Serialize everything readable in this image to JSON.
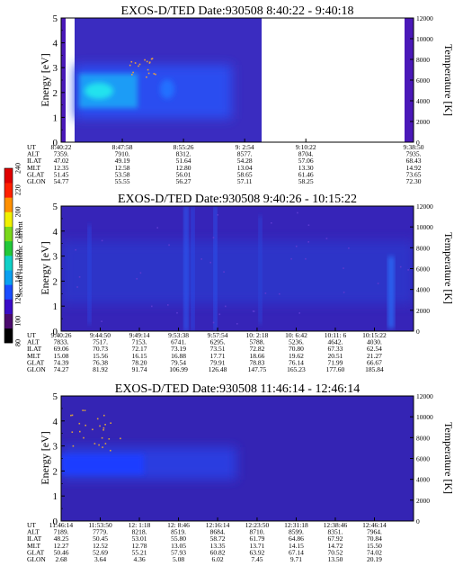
{
  "chart_data": {
    "type": "heatmap",
    "colorbar": {
      "label": "Second Harmonic Current",
      "ticks": [
        "80",
        "100",
        "120",
        "140",
        "160",
        "180",
        "200",
        "220",
        "240"
      ],
      "colors": [
        "#000000",
        "#4b0a6e",
        "#3a0cc8",
        "#1a4cff",
        "#0aa0f0",
        "#10d0c8",
        "#22c83a",
        "#7ad81a",
        "#f0f000",
        "#ff9000",
        "#ff2000",
        "#e00000"
      ]
    },
    "panels": [
      {
        "title": "EXOS-D/TED   Date:930508   8:40:22 - 9:40:18",
        "ylabel": "Energy [eV]",
        "ylabel_right": "Temperature [K]",
        "yticks": [
          "0",
          "1",
          "2",
          "3",
          "4",
          "5"
        ],
        "yticks_right": [
          "0",
          "2000",
          "4000",
          "6000",
          "8000",
          "10000",
          "12000"
        ],
        "ylim": [
          0,
          5
        ],
        "ylim_right": [
          0,
          12000
        ],
        "row_labels": [
          "UT",
          "ALT",
          "ILAT",
          "MLT",
          "GLAT",
          "GLON"
        ],
        "columns": [
          {
            "frac": 0.0,
            "values": [
              "8:40:22",
              "7359.",
              "47.02",
              "12.35",
              "51.45",
              "54.77"
            ]
          },
          {
            "frac": 0.1736,
            "values": [
              "8:47:58",
              "7910.",
              "49.19",
              "12.58",
              "53.58",
              "55.55"
            ]
          },
          {
            "frac": 0.3472,
            "values": [
              "8:55:26",
              "8312.",
              "51.64",
              "12.80",
              "56.01",
              "56.27"
            ]
          },
          {
            "frac": 0.5208,
            "values": [
              "9: 2:54",
              "8577.",
              "54.28",
              "13.04",
              "58.65",
              "57.11"
            ]
          },
          {
            "frac": 0.6944,
            "values": [
              "9:10:22",
              "8704.",
              "57.06",
              "13.30",
              "61.46",
              "58.25"
            ]
          },
          {
            "frac": 1.0,
            "values": [
              "9:38:50",
              "7935.",
              "68.43",
              "14.92",
              "73.65",
              "72.30"
            ]
          }
        ]
      },
      {
        "title": "EXOS-D/TED   Date:930508   9:40:26 - 10:15:22",
        "ylabel": "Energy [eV]",
        "ylabel_right": "Temperature [K]",
        "yticks": [
          "0",
          "1",
          "2",
          "3",
          "4",
          "5"
        ],
        "yticks_right": [
          "0",
          "2000",
          "4000",
          "6000",
          "8000",
          "10000",
          "12000"
        ],
        "ylim": [
          0,
          5
        ],
        "ylim_right": [
          0,
          12000
        ],
        "row_labels": [
          "UT",
          "ALT",
          "ILAT",
          "MLT",
          "GLAT",
          "GLON"
        ],
        "columns": [
          {
            "frac": 0.0,
            "values": [
              "9:40:26",
              "7833.",
              "69.06",
              "15.08",
              "74.39",
              "74.27"
            ]
          },
          {
            "frac": 0.111,
            "values": [
              "9:44:50",
              "7517.",
              "70.73",
              "15.56",
              "76.38",
              "81.92"
            ]
          },
          {
            "frac": 0.222,
            "values": [
              "9:49:14",
              "7153.",
              "72.17",
              "16.15",
              "78.20",
              "91.74"
            ]
          },
          {
            "frac": 0.333,
            "values": [
              "9:53:38",
              "6741.",
              "73.19",
              "16.88",
              "79.54",
              "106.99"
            ]
          },
          {
            "frac": 0.444,
            "values": [
              "9:57:54",
              "6295.",
              "73.51",
              "17.71",
              "79.91",
              "126.48"
            ]
          },
          {
            "frac": 0.556,
            "values": [
              "10: 2:18",
              "5788.",
              "72.82",
              "18.66",
              "78.83",
              "147.75"
            ]
          },
          {
            "frac": 0.667,
            "values": [
              "10: 6:42",
              "5236.",
              "70.80",
              "19.62",
              "76.14",
              "165.23"
            ]
          },
          {
            "frac": 0.778,
            "values": [
              "10:11: 6",
              "4642.",
              "67.33",
              "20.51",
              "71.99",
              "177.60"
            ]
          },
          {
            "frac": 0.889,
            "values": [
              "10:15:22",
              "4030.",
              "62.54",
              "21.27",
              "66.67",
              "185.84"
            ]
          }
        ]
      },
      {
        "title": "EXOS-D/TED   Date:930508   11:46:14 - 12:46:14",
        "ylabel": "Energy [eV]",
        "ylabel_right": "Temperature [K]",
        "yticks": [
          "0",
          "1",
          "2",
          "3",
          "4",
          "5"
        ],
        "yticks_right": [
          "0",
          "2000",
          "4000",
          "6000",
          "8000",
          "10000",
          "12000"
        ],
        "ylim": [
          0,
          5
        ],
        "ylim_right": [
          0,
          12000
        ],
        "row_labels": [
          "UT",
          "ALT",
          "ILAT",
          "MLT",
          "GLAT",
          "GLON"
        ],
        "columns": [
          {
            "frac": 0.0,
            "values": [
              "11:46:14",
              "7189.",
              "48.25",
              "12.27",
              "50.46",
              "2.68"
            ]
          },
          {
            "frac": 0.111,
            "values": [
              "11:53:50",
              "7779.",
              "50.45",
              "12.52",
              "52.69",
              "3.64"
            ]
          },
          {
            "frac": 0.222,
            "values": [
              "12: 1:18",
              "8218.",
              "53.01",
              "12.78",
              "55.21",
              "4.36"
            ]
          },
          {
            "frac": 0.333,
            "values": [
              "12: 8:46",
              "8519.",
              "55.80",
              "13.05",
              "57.93",
              "5.08"
            ]
          },
          {
            "frac": 0.444,
            "values": [
              "12:16:14",
              "8684.",
              "58.72",
              "13.35",
              "60.82",
              "6.02"
            ]
          },
          {
            "frac": 0.556,
            "values": [
              "12:23:50",
              "8710.",
              "61.79",
              "13.71",
              "63.92",
              "7.45"
            ]
          },
          {
            "frac": 0.667,
            "values": [
              "12:31:18",
              "8599.",
              "64.86",
              "14.15",
              "67.14",
              "9.71"
            ]
          },
          {
            "frac": 0.778,
            "values": [
              "12:38:46",
              "8351.",
              "67.92",
              "14.72",
              "70.52",
              "13.50"
            ]
          },
          {
            "frac": 0.889,
            "values": [
              "12:46:14",
              "7964.",
              "70.84",
              "15.50",
              "74.02",
              "20.19"
            ]
          }
        ]
      }
    ]
  }
}
